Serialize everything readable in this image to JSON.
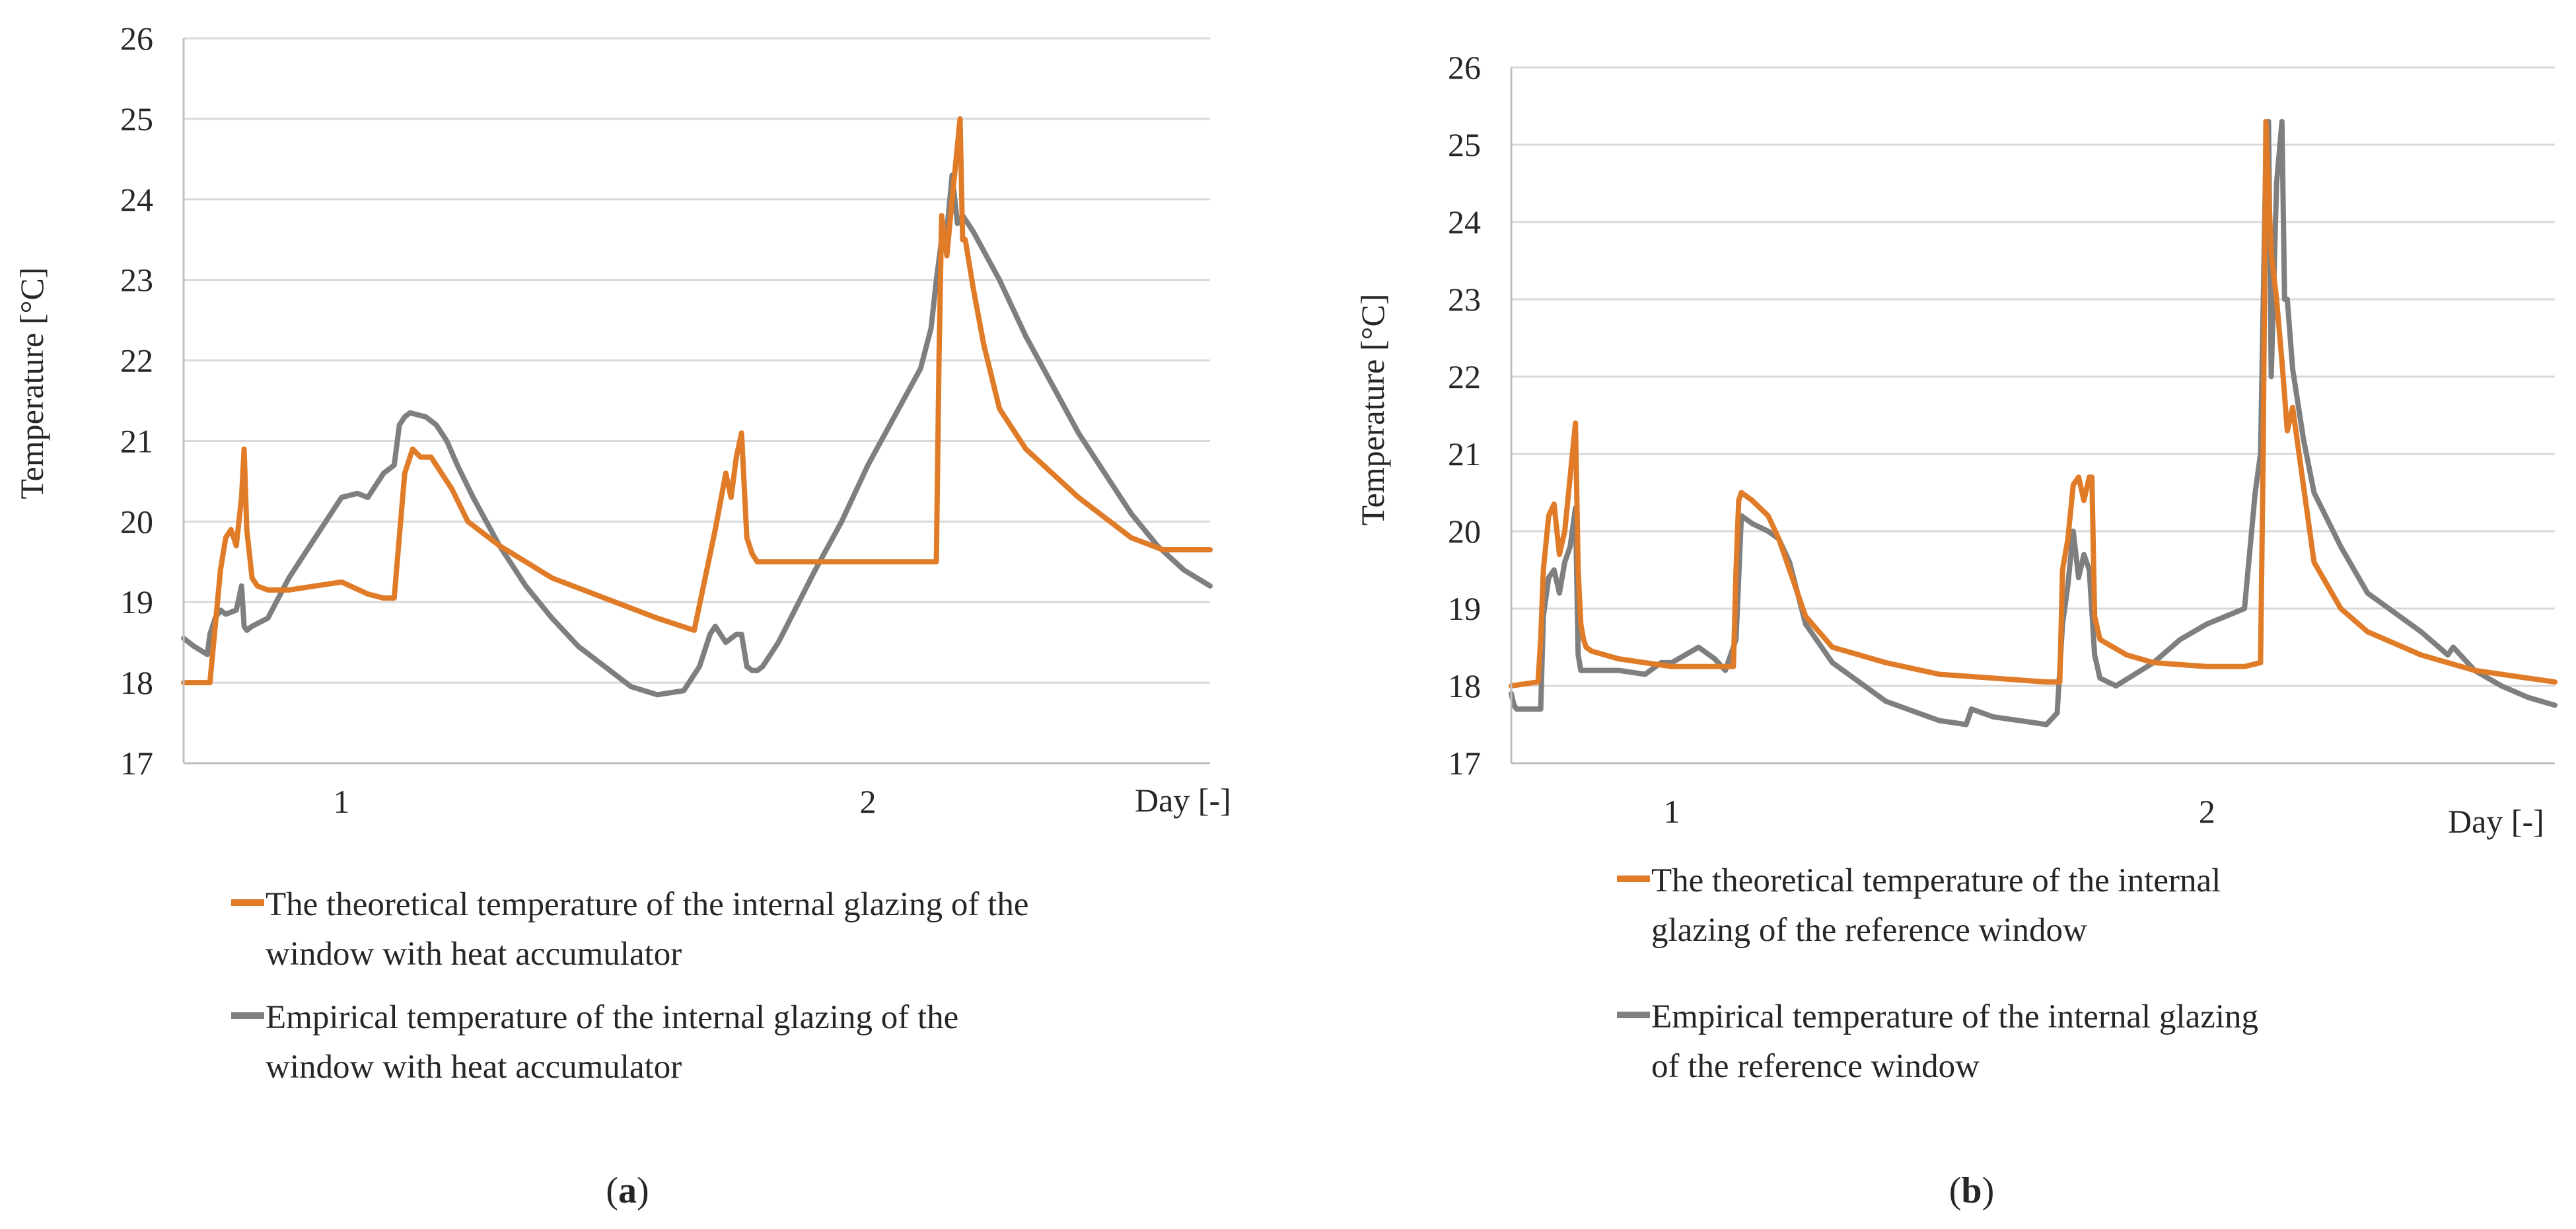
{
  "colors": {
    "theoretical": "#E07B28",
    "empirical": "#7F7F80",
    "grid": "#D9D9D9",
    "axis": "#BFBFBF"
  },
  "chart_data": [
    {
      "panel_label": "(a)",
      "panel_letter": "a",
      "type": "line",
      "ylabel": "Temperature [°C]",
      "xlabel": "Day [-]",
      "ylim": [
        17,
        26
      ],
      "yticks": [
        17,
        18,
        19,
        20,
        21,
        22,
        23,
        24,
        25,
        26
      ],
      "xlim": [
        0.7,
        2.65
      ],
      "xticks": [
        {
          "value": 1,
          "label": "1"
        },
        {
          "value": 2,
          "label": "2"
        }
      ],
      "grid": true,
      "legend": "bottom",
      "series": [
        {
          "name": "The theoretical temperature of the internal glazing of the window with heat accumulator",
          "legend_lines": [
            "The theoretical temperature of the internal glazing of the",
            "window with heat accumulator"
          ],
          "color_key": "theoretical",
          "x": [
            0.7,
            0.75,
            0.76,
            0.77,
            0.78,
            0.79,
            0.8,
            0.81,
            0.815,
            0.82,
            0.825,
            0.83,
            0.84,
            0.86,
            0.9,
            0.95,
            1.0,
            1.05,
            1.08,
            1.1,
            1.12,
            1.13,
            1.135,
            1.15,
            1.17,
            1.19,
            1.21,
            1.24,
            1.3,
            1.4,
            1.5,
            1.6,
            1.67,
            1.71,
            1.73,
            1.74,
            1.75,
            1.76,
            1.77,
            1.775,
            1.78,
            1.785,
            1.79,
            1.8,
            1.83,
            1.9,
            1.95,
            2.0,
            2.05,
            2.13,
            2.135,
            2.14,
            2.15,
            2.16,
            2.175,
            2.18,
            2.185,
            2.19,
            2.2,
            2.22,
            2.25,
            2.3,
            2.4,
            2.5,
            2.56,
            2.65
          ],
          "y": [
            18.0,
            18.0,
            18.7,
            19.4,
            19.8,
            19.9,
            19.7,
            20.3,
            20.9,
            19.9,
            19.6,
            19.3,
            19.2,
            19.15,
            19.15,
            19.2,
            19.25,
            19.1,
            19.05,
            19.05,
            20.6,
            20.8,
            20.9,
            20.8,
            20.8,
            20.6,
            20.4,
            20.0,
            19.7,
            19.3,
            19.05,
            18.8,
            18.65,
            19.9,
            20.6,
            20.3,
            20.8,
            21.1,
            19.8,
            19.7,
            19.6,
            19.55,
            19.5,
            19.5,
            19.5,
            19.5,
            19.5,
            19.5,
            19.5,
            19.5,
            22.0,
            23.8,
            23.3,
            24.0,
            25.0,
            23.5,
            23.5,
            23.3,
            22.9,
            22.2,
            21.4,
            20.9,
            20.3,
            19.8,
            19.65,
            19.65
          ]
        },
        {
          "name": "Empirical temperature of the internal glazing of the window with heat accumulator",
          "legend_lines": [
            "Empirical temperature of the internal glazing of the",
            "window with heat accumulator"
          ],
          "color_key": "empirical",
          "x": [
            0.7,
            0.72,
            0.745,
            0.75,
            0.76,
            0.77,
            0.78,
            0.8,
            0.81,
            0.815,
            0.82,
            0.83,
            0.86,
            0.9,
            0.95,
            1.0,
            1.03,
            1.05,
            1.08,
            1.1,
            1.11,
            1.12,
            1.13,
            1.16,
            1.18,
            1.2,
            1.22,
            1.25,
            1.3,
            1.35,
            1.4,
            1.45,
            1.5,
            1.55,
            1.6,
            1.65,
            1.68,
            1.7,
            1.71,
            1.73,
            1.75,
            1.76,
            1.77,
            1.78,
            1.79,
            1.8,
            1.83,
            1.9,
            1.95,
            2.0,
            2.05,
            2.1,
            2.12,
            2.13,
            2.14,
            2.15,
            2.16,
            2.17,
            2.18,
            2.19,
            2.2,
            2.25,
            2.3,
            2.35,
            2.4,
            2.45,
            2.5,
            2.55,
            2.6,
            2.65
          ],
          "y": [
            18.55,
            18.45,
            18.35,
            18.6,
            18.8,
            18.9,
            18.85,
            18.9,
            19.2,
            18.7,
            18.65,
            18.7,
            18.8,
            19.3,
            19.8,
            20.3,
            20.35,
            20.3,
            20.6,
            20.7,
            21.2,
            21.3,
            21.35,
            21.3,
            21.2,
            21.0,
            20.7,
            20.3,
            19.7,
            19.2,
            18.8,
            18.45,
            18.2,
            17.95,
            17.85,
            17.9,
            18.2,
            18.6,
            18.7,
            18.5,
            18.6,
            18.6,
            18.2,
            18.15,
            18.15,
            18.2,
            18.5,
            19.4,
            20.0,
            20.7,
            21.3,
            21.9,
            22.4,
            23.0,
            23.5,
            23.6,
            24.3,
            23.7,
            23.8,
            23.7,
            23.6,
            23.0,
            22.3,
            21.7,
            21.1,
            20.6,
            20.1,
            19.7,
            19.4,
            19.2
          ]
        }
      ]
    },
    {
      "panel_label": "(b)",
      "panel_letter": "b",
      "type": "line",
      "ylabel": "Temperature [°C]",
      "xlabel": "Day [-]",
      "ylim": [
        17,
        26
      ],
      "yticks": [
        17,
        18,
        19,
        20,
        21,
        22,
        23,
        24,
        25,
        26
      ],
      "xlim": [
        0.7,
        2.65
      ],
      "xticks": [
        {
          "value": 1,
          "label": "1"
        },
        {
          "value": 2,
          "label": "2"
        }
      ],
      "grid": true,
      "legend": "bottom",
      "series": [
        {
          "name": "The theoretical temperature of the internal glazing of the reference window",
          "legend_lines": [
            "The theoretical temperature of the internal",
            "glazing of the reference window"
          ],
          "color_key": "theoretical",
          "x": [
            0.7,
            0.75,
            0.755,
            0.76,
            0.77,
            0.78,
            0.79,
            0.8,
            0.81,
            0.82,
            0.825,
            0.83,
            0.835,
            0.84,
            0.85,
            0.9,
            0.95,
            1.0,
            1.05,
            1.1,
            1.115,
            1.12,
            1.125,
            1.13,
            1.15,
            1.18,
            1.2,
            1.22,
            1.25,
            1.3,
            1.4,
            1.5,
            1.6,
            1.7,
            1.725,
            1.73,
            1.74,
            1.75,
            1.76,
            1.77,
            1.78,
            1.785,
            1.79,
            1.8,
            1.85,
            1.9,
            2.0,
            2.07,
            2.1,
            2.105,
            2.11,
            2.12,
            2.13,
            2.14,
            2.15,
            2.16,
            2.18,
            2.2,
            2.25,
            2.3,
            2.4,
            2.5,
            2.6,
            2.65
          ],
          "y": [
            18.0,
            18.05,
            18.6,
            19.5,
            20.2,
            20.35,
            19.7,
            20.0,
            20.7,
            21.4,
            19.5,
            18.8,
            18.6,
            18.5,
            18.45,
            18.35,
            18.3,
            18.25,
            18.25,
            18.25,
            18.25,
            19.5,
            20.4,
            20.5,
            20.4,
            20.2,
            19.9,
            19.5,
            18.9,
            18.5,
            18.3,
            18.15,
            18.1,
            18.05,
            18.05,
            19.5,
            19.9,
            20.6,
            20.7,
            20.4,
            20.7,
            20.7,
            18.9,
            18.6,
            18.4,
            18.3,
            18.25,
            18.25,
            18.3,
            21.0,
            25.3,
            23.6,
            23.0,
            22.2,
            21.3,
            21.6,
            20.6,
            19.6,
            19.0,
            18.7,
            18.4,
            18.2,
            18.1,
            18.05
          ]
        },
        {
          "name": "Empirical temperature of the internal glazing of the reference window",
          "legend_lines": [
            "Empirical temperature of the internal glazing",
            "of the reference window"
          ],
          "color_key": "empirical",
          "x": [
            0.7,
            0.705,
            0.71,
            0.73,
            0.755,
            0.76,
            0.77,
            0.78,
            0.79,
            0.8,
            0.81,
            0.82,
            0.825,
            0.83,
            0.85,
            0.9,
            0.95,
            0.98,
            1.0,
            1.05,
            1.08,
            1.1,
            1.11,
            1.12,
            1.13,
            1.15,
            1.18,
            1.2,
            1.22,
            1.25,
            1.3,
            1.4,
            1.5,
            1.55,
            1.56,
            1.6,
            1.65,
            1.7,
            1.72,
            1.73,
            1.74,
            1.75,
            1.76,
            1.77,
            1.78,
            1.79,
            1.8,
            1.83,
            1.9,
            1.95,
            2.0,
            2.07,
            2.09,
            2.1,
            2.11,
            2.115,
            2.12,
            2.13,
            2.14,
            2.145,
            2.15,
            2.16,
            2.18,
            2.2,
            2.25,
            2.3,
            2.4,
            2.45,
            2.46,
            2.5,
            2.55,
            2.6,
            2.65
          ],
          "y": [
            17.9,
            17.75,
            17.7,
            17.7,
            17.7,
            18.9,
            19.4,
            19.5,
            19.2,
            19.6,
            19.8,
            20.3,
            18.4,
            18.2,
            18.2,
            18.2,
            18.15,
            18.3,
            18.3,
            18.5,
            18.35,
            18.2,
            18.4,
            18.6,
            20.2,
            20.1,
            20.0,
            19.9,
            19.6,
            18.8,
            18.3,
            17.8,
            17.55,
            17.5,
            17.7,
            17.6,
            17.55,
            17.5,
            17.65,
            18.8,
            19.3,
            20.0,
            19.4,
            19.7,
            19.5,
            18.4,
            18.1,
            18.0,
            18.3,
            18.6,
            18.8,
            19.0,
            20.5,
            21.0,
            24.9,
            25.3,
            22.0,
            24.5,
            25.3,
            23.0,
            23.0,
            22.1,
            21.2,
            20.5,
            19.8,
            19.2,
            18.7,
            18.4,
            18.5,
            18.2,
            18.0,
            17.85,
            17.75
          ]
        }
      ]
    }
  ]
}
